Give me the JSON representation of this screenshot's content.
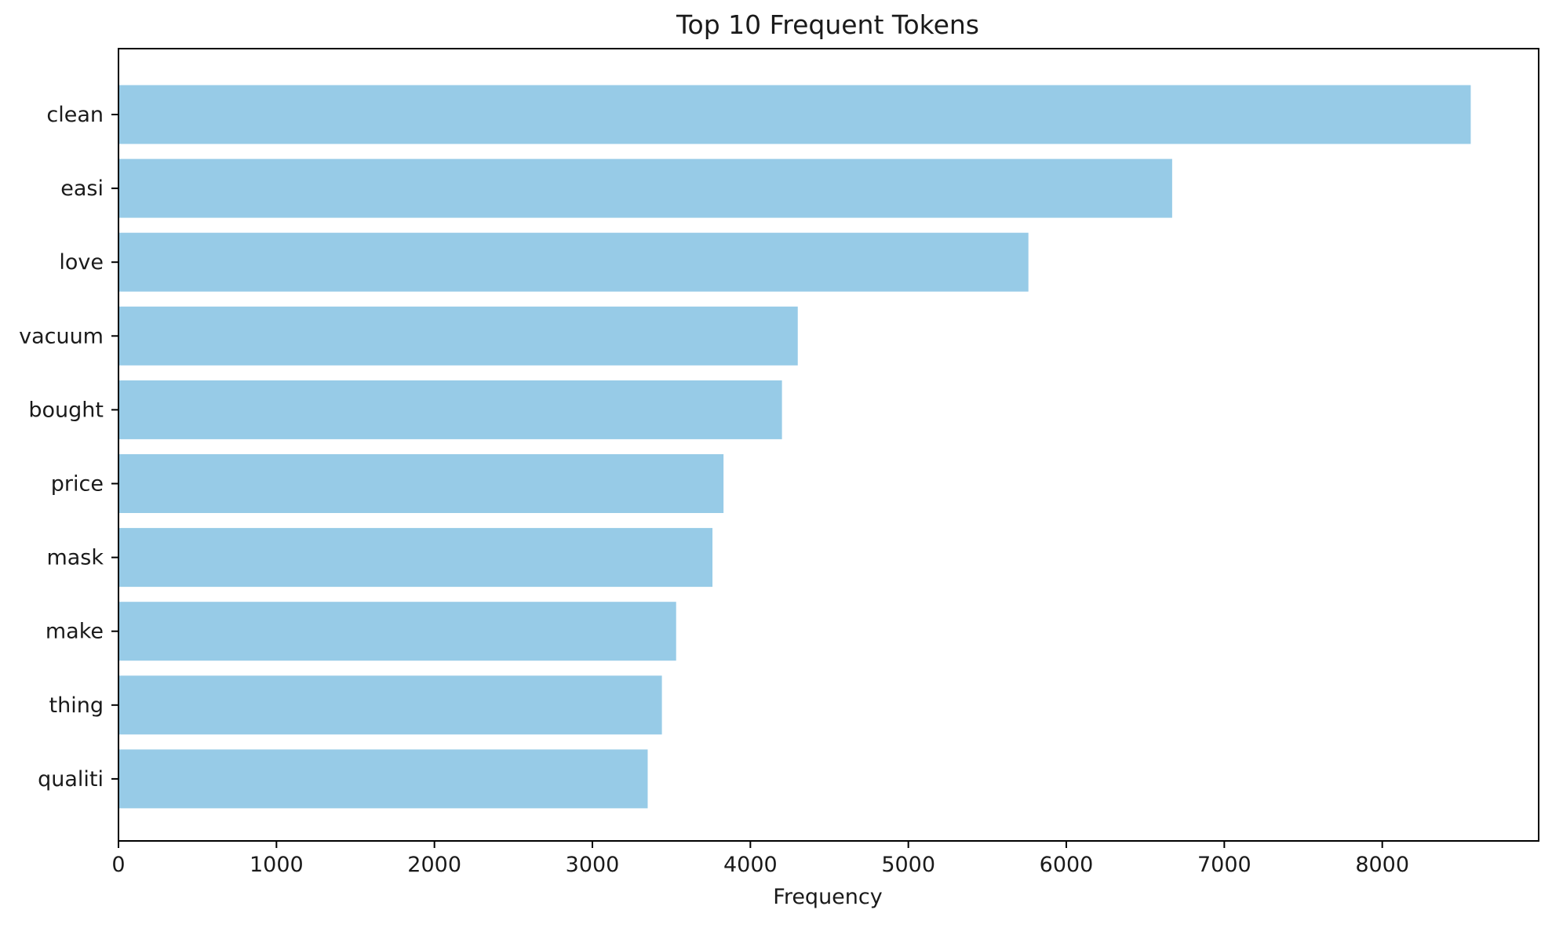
{
  "chart_data": {
    "type": "bar",
    "orientation": "horizontal",
    "title": "Top 10 Frequent Tokens",
    "xlabel": "Frequency",
    "ylabel": "",
    "categories": [
      "clean",
      "easi",
      "love",
      "vacuum",
      "bought",
      "price",
      "mask",
      "make",
      "thing",
      "qualiti"
    ],
    "values": [
      8560,
      6670,
      5760,
      4300,
      4200,
      3830,
      3760,
      3530,
      3440,
      3350
    ],
    "xlim": [
      0,
      8990
    ],
    "xticks": [
      0,
      1000,
      2000,
      3000,
      4000,
      5000,
      6000,
      7000,
      8000
    ],
    "grid": false,
    "legend": "none",
    "bar_color": "#97cbe7",
    "axis_color": "#000000"
  }
}
